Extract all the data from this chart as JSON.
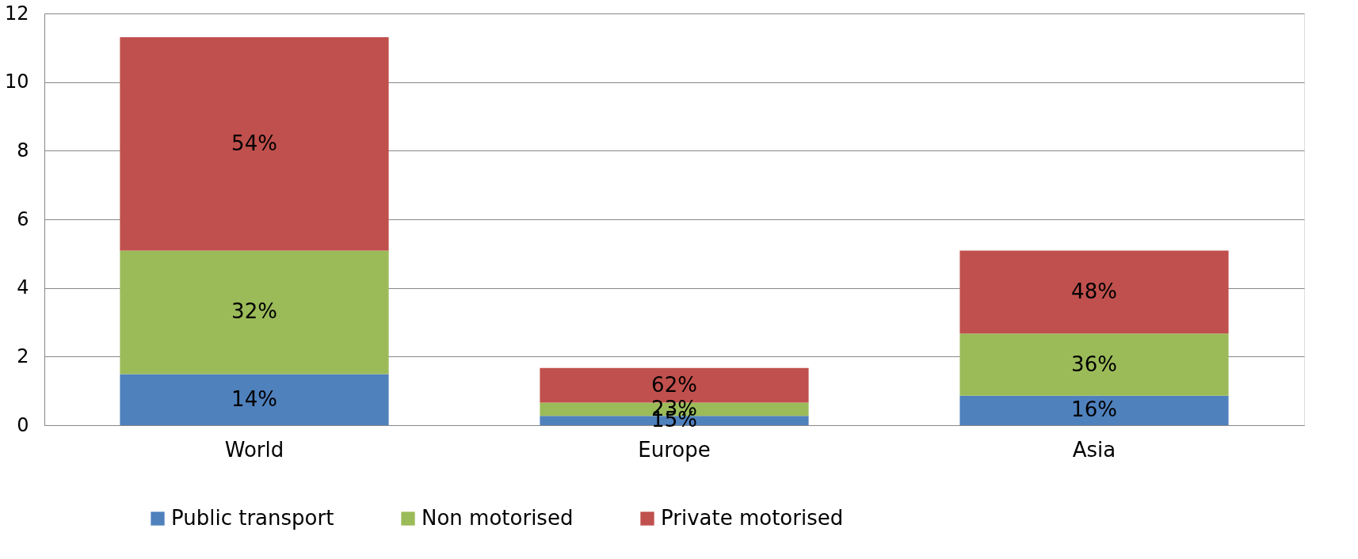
{
  "chart_data": {
    "type": "bar",
    "stacked": true,
    "categories": [
      "World",
      "Europe",
      "Asia"
    ],
    "series": [
      {
        "name": "Public transport",
        "color": "#4f81bd",
        "values": [
          1.49,
          0.27,
          0.86
        ]
      },
      {
        "name": "Non motorised",
        "color": "#9bbb59",
        "values": [
          3.6,
          0.39,
          1.81
        ]
      },
      {
        "name": "Private motorised",
        "color": "#c0504d",
        "values": [
          6.22,
          1.01,
          2.42
        ]
      }
    ],
    "annotations": [
      "14%",
      "32%",
      "54%",
      "15%",
      "23%",
      "62%",
      "16%",
      "36%",
      "48%"
    ],
    "ylim": [
      0,
      12
    ],
    "yticks": [
      0,
      2,
      4,
      6,
      8,
      10,
      12
    ],
    "grid": "y",
    "legend": "bottom"
  }
}
